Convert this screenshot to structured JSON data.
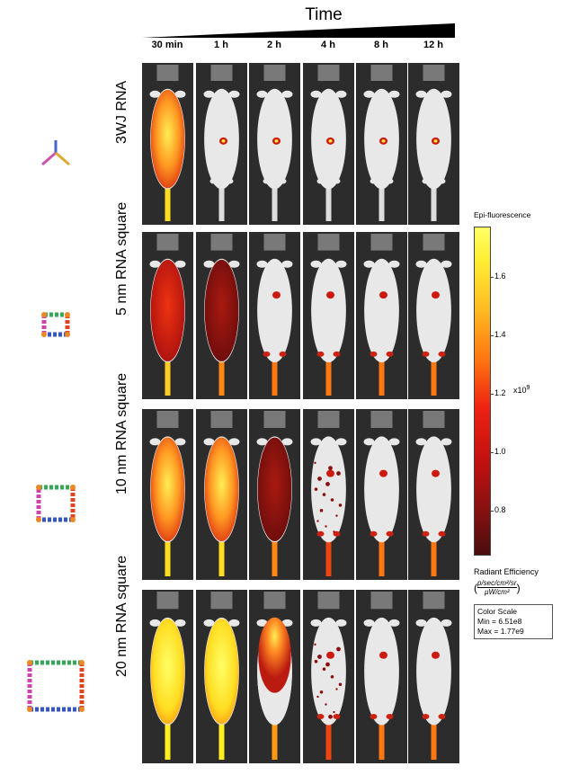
{
  "header": {
    "title": "Time"
  },
  "columns": [
    "30 min",
    "1 h",
    "2 h",
    "4 h",
    "8 h",
    "12 h"
  ],
  "rows": [
    {
      "label": "3WJ RNA",
      "structure-icon": "3wj-rna-structure-icon",
      "levels": [
        "high-full",
        "spot",
        "spot",
        "spot-small",
        "spot",
        "spot"
      ]
    },
    {
      "label": "5 nm RNA square",
      "structure-icon": "5nm-rna-square-icon",
      "levels": [
        "medium-full",
        "low-full",
        "spot-tail",
        "spot-tail",
        "spot-tail",
        "spot-tail"
      ]
    },
    {
      "label": "10 nm RNA square",
      "structure-icon": "10nm-rna-square-icon",
      "levels": [
        "high-full",
        "high-full",
        "low-full",
        "spot-scatter",
        "spot-tail",
        "spot-tail"
      ]
    },
    {
      "label": "20 nm RNA square",
      "structure-icon": "20nm-rna-square-icon",
      "levels": [
        "very-high-full",
        "very-high-full",
        "high-partial",
        "spot-scatter",
        "spot-tail",
        "spot-tail"
      ]
    }
  ],
  "colorbar": {
    "title": "Epi-fluorescence",
    "ticks": [
      "1.6",
      "1.4",
      "1.2",
      "1.0",
      "0.8"
    ],
    "exponent": "x10",
    "exponent_power": "9",
    "quantity": "Radiant Efficiency",
    "units_numerator": "p/sec/cm²/sr",
    "units_denominator": "µW/cm²",
    "scale_title": "Color Scale",
    "scale_min": "Min = 6.51e8",
    "scale_max": "Max = 1.77e9"
  },
  "colors": {
    "yellow": "#ffff55",
    "orange": "#ff8811",
    "red": "#dd1c10",
    "dark-red": "#7a1010",
    "background": "#2c2c2c"
  }
}
